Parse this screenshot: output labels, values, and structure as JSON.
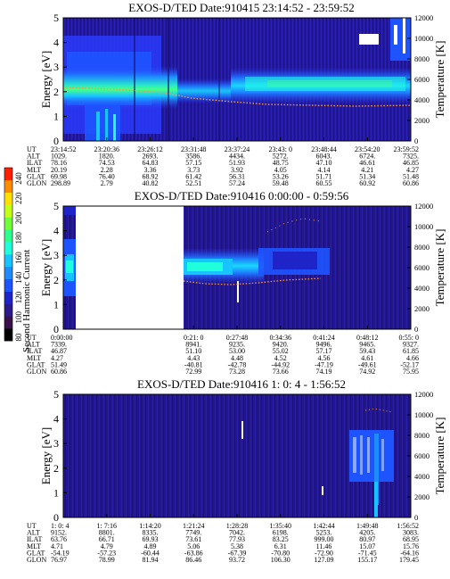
{
  "colorbar": {
    "label": "Second Harmonic Current",
    "ticks": [
      "240",
      "220",
      "200",
      "180",
      "160",
      "140",
      "120",
      "100",
      "80"
    ],
    "colors": [
      "#000000",
      "#3a0f4a",
      "#2a1a8c",
      "#1e24c8",
      "#1e54ff",
      "#1e8cff",
      "#18c4ff",
      "#20ffdc",
      "#2cff90",
      "#70ff38",
      "#c4ff18",
      "#ffe000",
      "#ff8c00",
      "#ff2000"
    ]
  },
  "panels": [
    {
      "title": "EXOS-D/TED   Date:910415  23:14:52 - 23:59:52",
      "ylabel": "Energy [eV]",
      "y2label": "Temperature [K]",
      "yticks": [
        "5",
        "4",
        "3",
        "2",
        "1",
        "0"
      ],
      "y2ticks": [
        "12000",
        "10000",
        "8000",
        "6000",
        "4000",
        "2000",
        "0"
      ],
      "columns": [
        {
          "UT": "23:14:52",
          "ALT": "1029.",
          "ILAT": "78.16",
          "MLT": "20.19",
          "GLAT": "69.98",
          "GLON": "298.89"
        },
        {
          "UT": "23:20:36",
          "ALT": "1820.",
          "ILAT": "74.53",
          "MLT": "2.28",
          "GLAT": "76.40",
          "GLON": "2.79"
        },
        {
          "UT": "23:26:12",
          "ALT": "2693.",
          "ILAT": "64.83",
          "MLT": "3.36",
          "GLAT": "68.92",
          "GLON": "40.82"
        },
        {
          "UT": "23:31:48",
          "ALT": "3586.",
          "ILAT": "57.15",
          "MLT": "3.73",
          "GLAT": "61.42",
          "GLON": "52.51"
        },
        {
          "UT": "23:37:24",
          "ALT": "4434.",
          "ILAT": "51.93",
          "MLT": "3.92",
          "GLAT": "56.31",
          "GLON": "57.24"
        },
        {
          "UT": "23:43: 0",
          "ALT": "5272.",
          "ILAT": "48.75",
          "MLT": "4.05",
          "GLAT": "53.26",
          "GLON": "59.48"
        },
        {
          "UT": "23:48:44",
          "ALT": "6043.",
          "ILAT": "47.10",
          "MLT": "4.14",
          "GLAT": "51.71",
          "GLON": "60.55"
        },
        {
          "UT": "23:54:20",
          "ALT": "6724.",
          "ILAT": "46.61",
          "MLT": "4.21",
          "GLAT": "51.34",
          "GLON": "60.92"
        },
        {
          "UT": "23:59:52",
          "ALT": "7325.",
          "ILAT": "46.85",
          "MLT": "4.27",
          "GLAT": "51.48",
          "GLON": "60.86"
        }
      ]
    },
    {
      "title": "EXOS-D/TED   Date:910416  0:00:00 - 0:59:56",
      "ylabel": "Energy [eV]",
      "y2label": "Temperature [K]",
      "yticks": [
        "5",
        "4",
        "3",
        "2",
        "1",
        "0"
      ],
      "y2ticks": [
        "12000",
        "10000",
        "8000",
        "6000",
        "4000",
        "2000",
        "0"
      ],
      "columns": [
        {
          "UT": "0:00:00",
          "ALT": "7339.",
          "ILAT": "46.87",
          "MLT": "4.27",
          "GLAT": "51.49",
          "GLON": "60.86"
        },
        {
          "UT": "",
          "ALT": "",
          "ILAT": "",
          "MLT": "",
          "GLAT": "",
          "GLON": ""
        },
        {
          "UT": "",
          "ALT": "",
          "ILAT": "",
          "MLT": "",
          "GLAT": "",
          "GLON": ""
        },
        {
          "UT": "0:21: 0",
          "ALT": "8941.",
          "ILAT": "51.10",
          "MLT": "4.43",
          "GLAT": "-40.81",
          "GLON": "72.99"
        },
        {
          "UT": "0:27:48",
          "ALT": "9235.",
          "ILAT": "53.00",
          "MLT": "4.48",
          "GLAT": "-42.78",
          "GLON": "73.28"
        },
        {
          "UT": "0:34:36",
          "ALT": "9420.",
          "ILAT": "55.02",
          "MLT": "4.52",
          "GLAT": "-44.92",
          "GLON": "73.66"
        },
        {
          "UT": "0:41:24",
          "ALT": "9496.",
          "ILAT": "57.17",
          "MLT": "4.56",
          "GLAT": "-47.19",
          "GLON": "74.19"
        },
        {
          "UT": "0:48:12",
          "ALT": "9465.",
          "ILAT": "59.43",
          "MLT": "4.61",
          "GLAT": "-49.61",
          "GLON": "74.92"
        },
        {
          "UT": "0:55: 0",
          "ALT": "9327.",
          "ILAT": "61.85",
          "MLT": "4.66",
          "GLAT": "-52.17",
          "GLON": "75.95"
        }
      ]
    },
    {
      "title": "EXOS-D/TED   Date:910416  1: 0: 4 - 1:56:52",
      "ylabel": "Energy [eV]",
      "y2label": "Temperature [K]",
      "yticks": [
        "5",
        "4",
        "3",
        "2",
        "1",
        "0"
      ],
      "y2ticks": [
        "12000",
        "10000",
        "8000",
        "6000",
        "4000",
        "2000",
        "0"
      ],
      "columns": [
        {
          "UT": "1: 0: 4",
          "ALT": "9152.",
          "ILAT": "63.76",
          "MLT": "4.71",
          "GLAT": "-54.19",
          "GLON": "76.97"
        },
        {
          "UT": "1: 7:16",
          "ALT": "8801.",
          "ILAT": "66.71",
          "MLT": "4.79",
          "GLAT": "-57.23",
          "GLON": "78.99"
        },
        {
          "UT": "1:14:20",
          "ALT": "8335.",
          "ILAT": "69.93",
          "MLT": "4.89",
          "GLAT": "-60.44",
          "GLON": "81.94"
        },
        {
          "UT": "1:21:24",
          "ALT": "7749.",
          "ILAT": "73.61",
          "MLT": "5.06",
          "GLAT": "-63.86",
          "GLON": "86.46"
        },
        {
          "UT": "1:28:28",
          "ALT": "7042.",
          "ILAT": "77.93",
          "MLT": "5.38",
          "GLAT": "-67.39",
          "GLON": "93.72"
        },
        {
          "UT": "1:35:40",
          "ALT": "6198.",
          "ILAT": "83.25",
          "MLT": "6.31",
          "GLAT": "-70.80",
          "GLON": "106.30"
        },
        {
          "UT": "1:42:44",
          "ALT": "5253.",
          "ILAT": "999.00",
          "MLT": "11.46",
          "GLAT": "-72.90",
          "GLON": "127.09"
        },
        {
          "UT": "1:49:48",
          "ALT": "4205.",
          "ILAT": "80.97",
          "MLT": "15.07",
          "GLAT": "-71.45",
          "GLON": "155.17"
        },
        {
          "UT": "1:56:52",
          "ALT": "3083.",
          "ILAT": "68.95",
          "MLT": "15.76",
          "GLAT": "-64.16",
          "GLON": "179.45"
        }
      ]
    }
  ],
  "row_labels": [
    "UT",
    "ALT",
    "ILAT",
    "MLT",
    "GLAT",
    "GLON"
  ],
  "chart_data": [
    {
      "type": "heatmap",
      "title": "EXOS-D/TED   Date:910415  23:14:52 - 23:59:52",
      "ylabel": "Energy [eV]",
      "ylim": [
        0,
        5
      ],
      "y2label": "Temperature [K]",
      "y2lim": [
        0,
        12000
      ],
      "x_range": [
        "23:14:52",
        "23:59:52"
      ],
      "features": {
        "band_center_eV": 2.3,
        "band_color": "#3cff90",
        "temperature_line_K_range": [
          3800,
          4600
        ]
      }
    },
    {
      "type": "heatmap",
      "title": "EXOS-D/TED   Date:910416  0:00:00 - 0:59:56",
      "ylabel": "Energy [eV]",
      "ylim": [
        0,
        5
      ],
      "y2label": "Temperature [K]",
      "y2lim": [
        0,
        12000
      ],
      "x_range": [
        "0:00:00",
        "0:59:56"
      ],
      "features": {
        "no_data_interval": [
          "0:02:00",
          "0:21:00"
        ],
        "band_center_eV": 2.5,
        "temperature_line_K_range": [
          5000,
          6400
        ]
      }
    },
    {
      "type": "heatmap",
      "title": "EXOS-D/TED   Date:910416  1: 0: 4 - 1:56:52",
      "ylabel": "Energy [eV]",
      "ylim": [
        0,
        5
      ],
      "y2label": "Temperature [K]",
      "y2lim": [
        0,
        12000
      ],
      "x_range": [
        "1: 0: 4",
        "1:56:52"
      ],
      "features": {
        "enhancement_interval": [
          "1:48:30",
          "1:53:30"
        ]
      }
    }
  ]
}
